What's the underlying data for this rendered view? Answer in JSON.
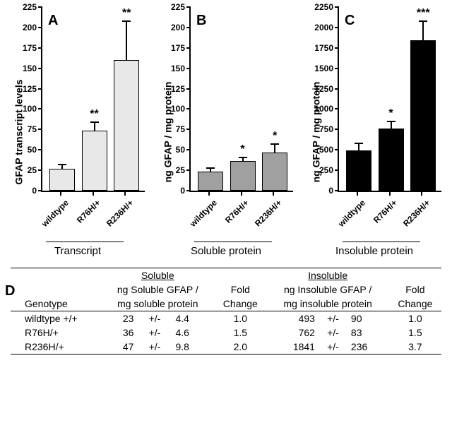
{
  "charts": [
    {
      "panel": "A",
      "ylabel": "GFAP transcript levels",
      "ymax": 225,
      "ytick_step": 25,
      "bar_color": "#e8e8e8",
      "section": "Transcript",
      "categories": [
        "wildtype",
        "R76H/+",
        "R236H/+"
      ],
      "values": [
        27,
        74,
        160
      ],
      "errors": [
        5,
        10,
        48
      ],
      "sig": [
        "",
        "**",
        "**"
      ]
    },
    {
      "panel": "B",
      "ylabel": "ng GFAP / mg protein",
      "ymax": 225,
      "ytick_step": 25,
      "bar_color": "#a0a0a0",
      "section": "Soluble protein",
      "categories": [
        "wildtype",
        "R76H/+",
        "R236H/+"
      ],
      "values": [
        23,
        36,
        47
      ],
      "errors": [
        4.4,
        4.6,
        9.8
      ],
      "sig": [
        "",
        "*",
        "*"
      ]
    },
    {
      "panel": "C",
      "ylabel": "ng GFAP / mg protein",
      "ymax": 2250,
      "ytick_step": 250,
      "bar_color": "#000000",
      "section": "Insoluble protein",
      "categories": [
        "wildtype",
        "R76H/+",
        "R236H/+"
      ],
      "values": [
        493,
        762,
        1841
      ],
      "errors": [
        90,
        83,
        236
      ],
      "sig": [
        "",
        "*",
        "***"
      ]
    }
  ],
  "table": {
    "panel": "D",
    "headers": {
      "genotype": "Genotype",
      "soluble_title": "Soluble",
      "soluble_col": "ng Soluble GFAP /",
      "soluble_col2": "mg soluble protein",
      "insoluble_title": "Insoluble",
      "insoluble_col": "ng Insoluble GFAP /",
      "insoluble_col2": "mg insoluble protein",
      "fold": "Fold",
      "change": "Change"
    },
    "rows": [
      {
        "g": "wildtype +/+",
        "s_v": "23",
        "s_pm": "+/-",
        "s_e": "4.4",
        "s_f": "1.0",
        "i_v": "493",
        "i_pm": "+/-",
        "i_e": "90",
        "i_f": "1.0"
      },
      {
        "g": "R76H/+",
        "s_v": "36",
        "s_pm": "+/-",
        "s_e": "4.6",
        "s_f": "1.5",
        "i_v": "762",
        "i_pm": "+/-",
        "i_e": "83",
        "i_f": "1.5"
      },
      {
        "g": "R236H/+",
        "s_v": "47",
        "s_pm": "+/-",
        "s_e": "9.8",
        "s_f": "2.0",
        "i_v": "1841",
        "i_pm": "+/-",
        "i_e": "236",
        "i_f": "3.7"
      }
    ]
  }
}
